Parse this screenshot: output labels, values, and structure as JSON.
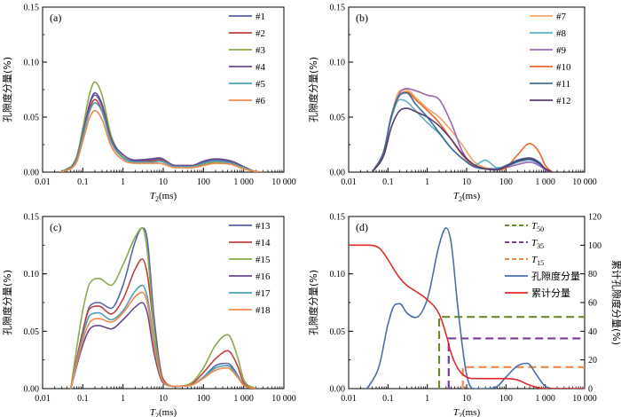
{
  "chart_data": [
    {
      "type": "line",
      "panel_label": "(a)",
      "xscale": "log",
      "xlim": [
        0.01,
        10000
      ],
      "ylim": [
        0,
        0.15
      ],
      "xticks": [
        "0.01",
        "0.1",
        "1",
        "10",
        "100",
        "1 000",
        "10 000"
      ],
      "yticks": [
        "0.00",
        "0.05",
        "0.10",
        "0.15"
      ],
      "xlabel": "T2(ms)",
      "ylabel": "孔隙度分量(%)",
      "legend_position": "top-right",
      "series": [
        {
          "name": "#1",
          "color": "#5566aa",
          "x": [
            0.03,
            0.07,
            0.1,
            0.15,
            0.2,
            0.3,
            0.5,
            1,
            2,
            5,
            8,
            20,
            50,
            100,
            200,
            500,
            1000,
            2000,
            3000
          ],
          "y": [
            0,
            0.012,
            0.035,
            0.062,
            0.07,
            0.06,
            0.03,
            0.014,
            0.01,
            0.011,
            0.012,
            0.006,
            0.006,
            0.009,
            0.011,
            0.009,
            0.004,
            0.0005,
            0
          ]
        },
        {
          "name": "#2",
          "color": "#c04040",
          "x": [
            0.03,
            0.07,
            0.1,
            0.15,
            0.2,
            0.3,
            0.5,
            1,
            2,
            5,
            8,
            20,
            50,
            100,
            200,
            500,
            1000,
            2000,
            3000
          ],
          "y": [
            0,
            0.011,
            0.033,
            0.058,
            0.066,
            0.056,
            0.028,
            0.013,
            0.009,
            0.01,
            0.011,
            0.005,
            0.005,
            0.008,
            0.01,
            0.008,
            0.004,
            0.0005,
            0
          ]
        },
        {
          "name": "#3",
          "color": "#8aab4c",
          "x": [
            0.03,
            0.07,
            0.1,
            0.15,
            0.2,
            0.3,
            0.5,
            1,
            2,
            5,
            8,
            20,
            50,
            100,
            200,
            500,
            1000,
            2000,
            3000
          ],
          "y": [
            0,
            0.014,
            0.04,
            0.072,
            0.082,
            0.07,
            0.034,
            0.014,
            0.009,
            0.009,
            0.01,
            0.005,
            0.004,
            0.007,
            0.009,
            0.007,
            0.003,
            0.0005,
            0
          ]
        },
        {
          "name": "#4",
          "color": "#6a4a8c",
          "x": [
            0.03,
            0.07,
            0.1,
            0.15,
            0.2,
            0.3,
            0.5,
            1,
            2,
            5,
            8,
            20,
            50,
            100,
            200,
            500,
            1000,
            2000,
            3000
          ],
          "y": [
            0,
            0.012,
            0.035,
            0.063,
            0.072,
            0.062,
            0.031,
            0.016,
            0.011,
            0.012,
            0.013,
            0.006,
            0.006,
            0.01,
            0.012,
            0.01,
            0.005,
            0.0005,
            0
          ]
        },
        {
          "name": "#5",
          "color": "#4fa0b8",
          "x": [
            0.03,
            0.07,
            0.1,
            0.15,
            0.2,
            0.3,
            0.5,
            1,
            2,
            5,
            8,
            20,
            50,
            100,
            200,
            500,
            1000,
            2000,
            3000
          ],
          "y": [
            0,
            0.011,
            0.032,
            0.056,
            0.063,
            0.055,
            0.028,
            0.013,
            0.009,
            0.009,
            0.01,
            0.005,
            0.005,
            0.008,
            0.01,
            0.008,
            0.004,
            0.0005,
            0
          ]
        },
        {
          "name": "#6",
          "color": "#f08a4b",
          "x": [
            0.03,
            0.07,
            0.1,
            0.15,
            0.2,
            0.3,
            0.5,
            1,
            2,
            5,
            8,
            20,
            50,
            100,
            200,
            500,
            1000,
            2000,
            3000
          ],
          "y": [
            0,
            0.009,
            0.028,
            0.05,
            0.056,
            0.048,
            0.024,
            0.011,
            0.008,
            0.008,
            0.008,
            0.004,
            0.004,
            0.006,
            0.008,
            0.007,
            0.003,
            0.0005,
            0
          ]
        }
      ]
    },
    {
      "type": "line",
      "panel_label": "(b)",
      "xscale": "log",
      "xlim": [
        0.01,
        10000
      ],
      "ylim": [
        0,
        0.15
      ],
      "xticks": [
        "0.01",
        "0.1",
        "1",
        "10",
        "100",
        "1 000",
        "10 000"
      ],
      "yticks": [
        "0.00",
        "0.05",
        "0.10",
        "0.15"
      ],
      "xlabel": "T2(ms)",
      "ylabel": "孔隙度分量(%)",
      "legend_position": "top-right",
      "series": [
        {
          "name": "#7",
          "color": "#f4a46a",
          "x": [
            0.04,
            0.08,
            0.12,
            0.2,
            0.3,
            0.5,
            1,
            2,
            4,
            8,
            15,
            30,
            60,
            100,
            200,
            400,
            700,
            1000,
            1500
          ],
          "y": [
            0,
            0.02,
            0.05,
            0.074,
            0.075,
            0.068,
            0.058,
            0.05,
            0.038,
            0.024,
            0.01,
            0.004,
            0.003,
            0.006,
            0.01,
            0.012,
            0.008,
            0.003,
            0
          ]
        },
        {
          "name": "#8",
          "color": "#5fb0c4",
          "x": [
            0.04,
            0.08,
            0.12,
            0.2,
            0.3,
            0.5,
            1,
            2,
            4,
            8,
            15,
            30,
            60,
            100,
            200,
            400,
            700,
            1000,
            1500
          ],
          "y": [
            0,
            0.02,
            0.048,
            0.066,
            0.064,
            0.056,
            0.045,
            0.035,
            0.022,
            0.012,
            0.006,
            0.011,
            0.004,
            0.005,
            0.009,
            0.011,
            0.007,
            0.003,
            0
          ]
        },
        {
          "name": "#9",
          "color": "#9a6ab8",
          "x": [
            0.04,
            0.08,
            0.12,
            0.2,
            0.3,
            0.5,
            1,
            2,
            4,
            8,
            15,
            30,
            60,
            100,
            200,
            400,
            700,
            1000,
            1500
          ],
          "y": [
            0,
            0.02,
            0.05,
            0.072,
            0.076,
            0.074,
            0.07,
            0.066,
            0.045,
            0.018,
            0.006,
            0.003,
            0.002,
            0.004,
            0.007,
            0.009,
            0.006,
            0.002,
            0
          ]
        },
        {
          "name": "#10",
          "color": "#e8682a",
          "x": [
            0.04,
            0.08,
            0.12,
            0.2,
            0.3,
            0.5,
            1,
            2,
            4,
            8,
            15,
            30,
            60,
            100,
            200,
            400,
            700,
            1000,
            1500
          ],
          "y": [
            0,
            0.02,
            0.05,
            0.07,
            0.073,
            0.066,
            0.056,
            0.045,
            0.03,
            0.015,
            0.006,
            0.003,
            0.002,
            0.004,
            0.016,
            0.026,
            0.018,
            0.006,
            0
          ]
        },
        {
          "name": "#11",
          "color": "#3d6e96",
          "x": [
            0.04,
            0.08,
            0.12,
            0.2,
            0.3,
            0.5,
            1,
            2,
            4,
            8,
            15,
            30,
            60,
            100,
            200,
            400,
            700,
            1000,
            1500
          ],
          "y": [
            0,
            0.02,
            0.05,
            0.07,
            0.072,
            0.062,
            0.05,
            0.036,
            0.022,
            0.012,
            0.005,
            0.003,
            0.003,
            0.006,
            0.011,
            0.013,
            0.009,
            0.003,
            0
          ]
        },
        {
          "name": "#12",
          "color": "#5a3a6e",
          "x": [
            0.04,
            0.08,
            0.12,
            0.2,
            0.3,
            0.5,
            1,
            2,
            4,
            8,
            15,
            30,
            60,
            100,
            200,
            400,
            700,
            1000,
            1500
          ],
          "y": [
            0,
            0.016,
            0.04,
            0.056,
            0.058,
            0.055,
            0.05,
            0.042,
            0.03,
            0.016,
            0.007,
            0.003,
            0.002,
            0.005,
            0.01,
            0.012,
            0.008,
            0.003,
            0
          ]
        }
      ]
    },
    {
      "type": "line",
      "panel_label": "(c)",
      "xscale": "log",
      "xlim": [
        0.01,
        10000
      ],
      "ylim": [
        0,
        0.15
      ],
      "xticks": [
        "0.01",
        "0.1",
        "1",
        "10",
        "100",
        "1 000",
        "10 000"
      ],
      "yticks": [
        "0.00",
        "0.05",
        "0.10",
        "0.15"
      ],
      "xlabel": "T2(ms)",
      "ylabel": "孔隙度分量(%)",
      "legend_position": "top-right",
      "series": [
        {
          "name": "#13",
          "color": "#5566aa",
          "x": [
            0.05,
            0.1,
            0.15,
            0.25,
            0.5,
            1,
            2,
            3,
            4,
            6,
            10,
            20,
            50,
            100,
            200,
            400,
            700,
            1000,
            2000
          ],
          "y": [
            0,
            0.05,
            0.072,
            0.075,
            0.07,
            0.09,
            0.128,
            0.14,
            0.13,
            0.06,
            0.008,
            0.002,
            0.003,
            0.01,
            0.02,
            0.022,
            0.012,
            0.003,
            0
          ]
        },
        {
          "name": "#14",
          "color": "#c04040",
          "x": [
            0.05,
            0.1,
            0.15,
            0.25,
            0.5,
            1,
            2,
            3,
            4,
            6,
            10,
            20,
            50,
            100,
            200,
            400,
            700,
            1000,
            2000
          ],
          "y": [
            0,
            0.05,
            0.07,
            0.072,
            0.065,
            0.078,
            0.104,
            0.113,
            0.1,
            0.05,
            0.008,
            0.002,
            0.004,
            0.014,
            0.026,
            0.033,
            0.02,
            0.005,
            0
          ]
        },
        {
          "name": "#15",
          "color": "#8aab4c",
          "x": [
            0.05,
            0.1,
            0.15,
            0.25,
            0.5,
            1,
            2,
            3,
            4,
            6,
            10,
            20,
            50,
            100,
            200,
            400,
            700,
            1000,
            2000
          ],
          "y": [
            0,
            0.068,
            0.092,
            0.096,
            0.09,
            0.108,
            0.132,
            0.14,
            0.12,
            0.05,
            0.006,
            0.002,
            0.005,
            0.018,
            0.038,
            0.047,
            0.028,
            0.008,
            0
          ]
        },
        {
          "name": "#16",
          "color": "#6a4a8c",
          "x": [
            0.05,
            0.1,
            0.15,
            0.25,
            0.5,
            1,
            2,
            3,
            4,
            6,
            10,
            20,
            50,
            100,
            200,
            400,
            700,
            1000,
            2000
          ],
          "y": [
            0,
            0.038,
            0.052,
            0.055,
            0.052,
            0.06,
            0.071,
            0.075,
            0.066,
            0.03,
            0.005,
            0.002,
            0.003,
            0.01,
            0.018,
            0.02,
            0.011,
            0.003,
            0
          ]
        },
        {
          "name": "#17",
          "color": "#4fa0b8",
          "x": [
            0.05,
            0.1,
            0.15,
            0.25,
            0.5,
            1,
            2,
            3,
            4,
            6,
            10,
            20,
            50,
            100,
            200,
            400,
            700,
            1000,
            2000
          ],
          "y": [
            0,
            0.046,
            0.064,
            0.066,
            0.06,
            0.068,
            0.085,
            0.09,
            0.08,
            0.04,
            0.006,
            0.002,
            0.003,
            0.01,
            0.018,
            0.02,
            0.011,
            0.003,
            0
          ]
        },
        {
          "name": "#18",
          "color": "#f08a4b",
          "x": [
            0.05,
            0.1,
            0.15,
            0.25,
            0.5,
            1,
            2,
            3,
            4,
            6,
            10,
            20,
            50,
            100,
            200,
            400,
            700,
            1000,
            2000
          ],
          "y": [
            0,
            0.042,
            0.058,
            0.061,
            0.058,
            0.066,
            0.08,
            0.084,
            0.075,
            0.036,
            0.006,
            0.002,
            0.003,
            0.009,
            0.016,
            0.018,
            0.01,
            0.003,
            0
          ]
        }
      ]
    },
    {
      "type": "line",
      "panel_label": "(d)",
      "xscale": "log",
      "xlim": [
        0.01,
        10000
      ],
      "ylim": [
        0,
        0.15
      ],
      "y2lim": [
        0,
        120
      ],
      "xticks": [
        "0.01",
        "0.1",
        "1",
        "10",
        "100",
        "1 000",
        "10 000"
      ],
      "yticks": [
        "0.00",
        "0.05",
        "0.10",
        "0.15"
      ],
      "y2ticks": [
        "0",
        "20",
        "40",
        "60",
        "80",
        "100",
        "120"
      ],
      "xlabel": "T2(ms)",
      "ylabel": "孔隙度分量(%)",
      "y2label": "累计孔隙度分量(%)",
      "legend_position": "top-right",
      "series": [
        {
          "name": "孔隙度分量",
          "axis": "left",
          "color": "#4a6fa8",
          "style": "solid",
          "x": [
            0.03,
            0.06,
            0.1,
            0.15,
            0.2,
            0.3,
            0.5,
            1,
            2,
            3,
            4,
            6,
            10,
            15,
            30,
            60,
            100,
            200,
            350,
            600,
            1000,
            2000,
            5000
          ],
          "y": [
            0,
            0.02,
            0.056,
            0.073,
            0.074,
            0.066,
            0.062,
            0.078,
            0.125,
            0.14,
            0.128,
            0.07,
            0.012,
            0,
            0,
            0.002,
            0.01,
            0.02,
            0.022,
            0.012,
            0.002,
            0,
            0
          ]
        },
        {
          "name": "累计分量",
          "axis": "right",
          "color": "#e02a2a",
          "style": "solid",
          "x": [
            0.01,
            0.03,
            0.06,
            0.1,
            0.15,
            0.2,
            0.3,
            0.5,
            1,
            2,
            3,
            4,
            6,
            10,
            15,
            30,
            60,
            100,
            200,
            350,
            600,
            1000,
            2000,
            10000
          ],
          "y": [
            100,
            100,
            98,
            90,
            82,
            77,
            72,
            68,
            62,
            52,
            38,
            25,
            14,
            8,
            7,
            7,
            7,
            7,
            6,
            3,
            1,
            0,
            0,
            0
          ]
        }
      ],
      "thresholds": [
        {
          "name": "T50",
          "label": "T",
          "sub": "50",
          "color": "#6a8a2a",
          "x": 2,
          "y_right": 50
        },
        {
          "name": "T35",
          "label": "T",
          "sub": "35",
          "color": "#7a3c9a",
          "x": 3.5,
          "y_right": 35
        },
        {
          "name": "T15",
          "label": "T",
          "sub": "15",
          "color": "#f08a4b",
          "x": 8,
          "y_right": 15
        }
      ]
    }
  ]
}
